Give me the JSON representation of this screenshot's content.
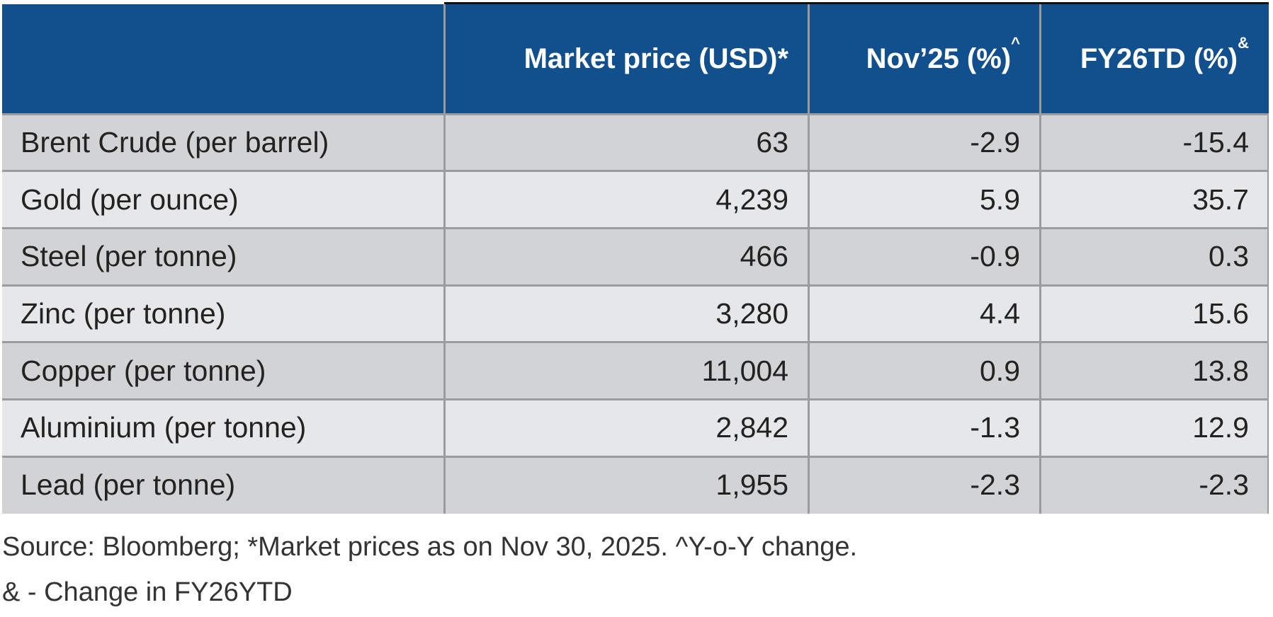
{
  "table": {
    "header": [
      {
        "text": "Market price (USD)*"
      },
      {
        "text": "Nov’25 (%)",
        "sup": "^"
      },
      {
        "text": "FY26TD (%)",
        "sup": "&"
      }
    ],
    "rows": [
      [
        "Brent Crude (per barrel)",
        "63",
        "-2.9",
        "-15.4"
      ],
      [
        "Gold (per ounce)",
        "4,239",
        "5.9",
        "35.7"
      ],
      [
        "Steel (per tonne)",
        "466",
        "-0.9",
        "0.3"
      ],
      [
        "Zinc (per tonne)",
        "3,280",
        "4.4",
        "15.6"
      ],
      [
        "Copper (per tonne)",
        "11,004",
        "0.9",
        "13.8"
      ],
      [
        "Aluminium (per tonne)",
        "2,842",
        "-1.3",
        "12.9"
      ],
      [
        "Lead (per tonne)",
        "1,955",
        "-2.3",
        "-2.3"
      ]
    ]
  },
  "footnotes": [
    "Source: Bloomberg; *Market prices as on Nov 30, 2025. ^Y-o-Y change.",
    "& - Change in FY26YTD"
  ]
}
